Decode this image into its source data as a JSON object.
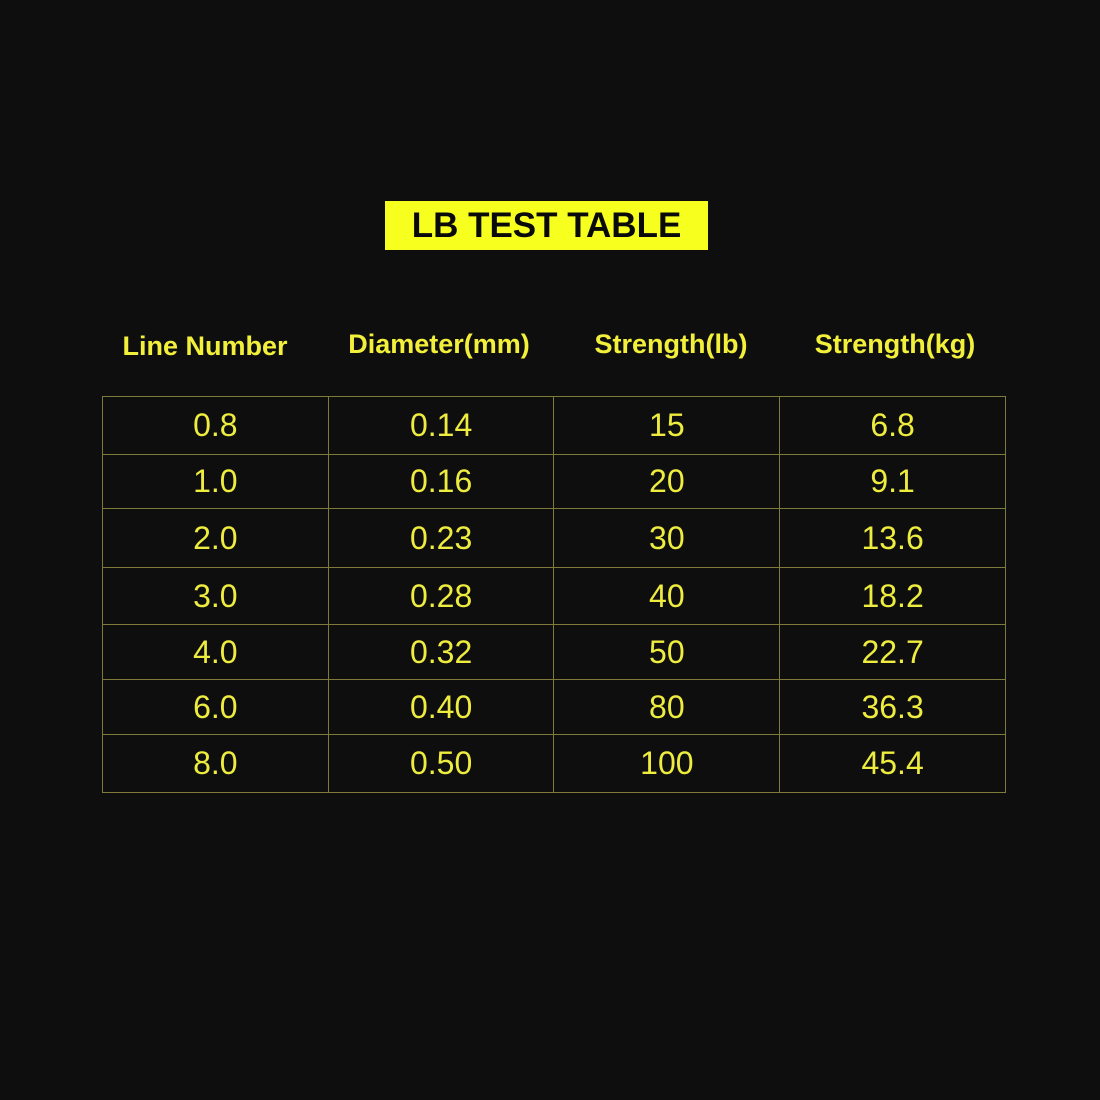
{
  "title": "LB TEST TABLE",
  "colors": {
    "background": "#0e0e0e",
    "accent": "#f7ff1e",
    "text": "#eeec3e",
    "border": "#7d7a3a"
  },
  "headers": [
    "Line Number",
    "Diameter(mm)",
    "Strength(lb)",
    "Strength(kg)"
  ],
  "rows": [
    [
      "0.8",
      "0.14",
      "15",
      "6.8"
    ],
    [
      "1.0",
      "0.16",
      "20",
      "9.1"
    ],
    [
      "2.0",
      "0.23",
      "30",
      "13.6"
    ],
    [
      "3.0",
      "0.28",
      "40",
      "18.2"
    ],
    [
      "4.0",
      "0.32",
      "50",
      "22.7"
    ],
    [
      "6.0",
      "0.40",
      "80",
      "36.3"
    ],
    [
      "8.0",
      "0.50",
      "100",
      "45.4"
    ]
  ]
}
